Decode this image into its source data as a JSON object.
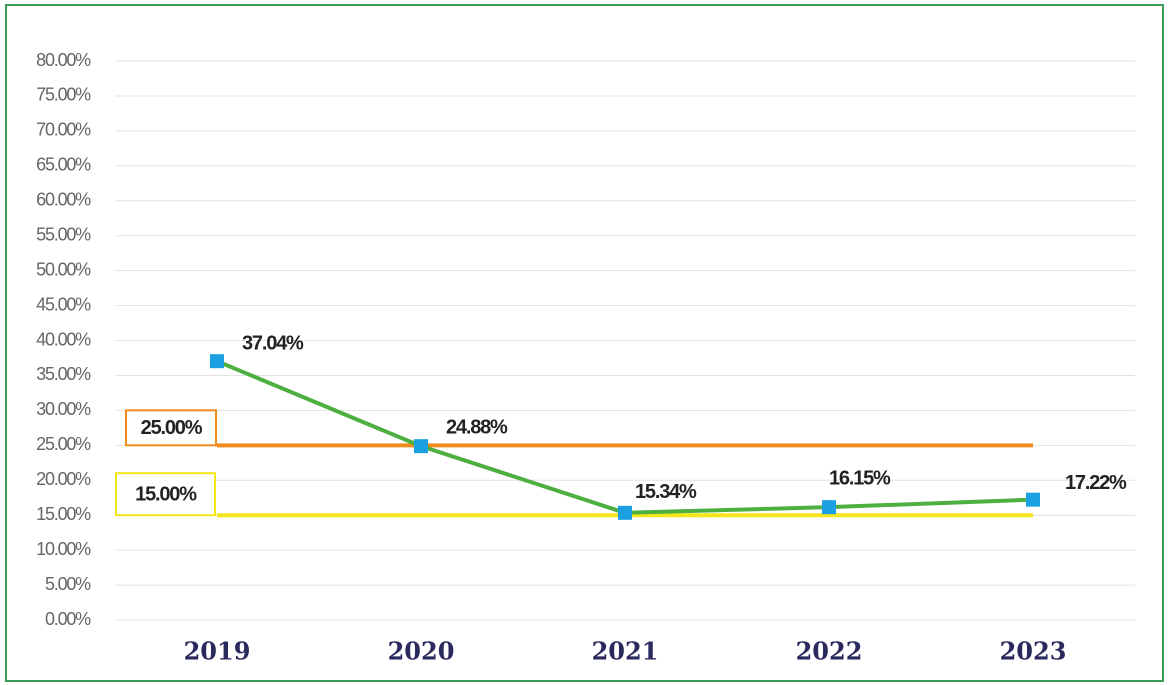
{
  "chart_data": {
    "type": "line",
    "categories": [
      "2019",
      "2020",
      "2021",
      "2022",
      "2023"
    ],
    "series": [
      {
        "name": null,
        "color": "#4caf3f",
        "marker_color": "#1ba1e2",
        "values": [
          37.04,
          24.88,
          15.34,
          16.15,
          17.22
        ],
        "value_labels": [
          "37.04%",
          "24.88%",
          "15.34%",
          "16.15%",
          "17.22%"
        ]
      }
    ],
    "reference_lines": [
      {
        "value": 25,
        "label": "25.00%",
        "color": "#f08c1e"
      },
      {
        "value": 15,
        "label": "15.00%",
        "color": "#f5e61a"
      }
    ],
    "ylim": [
      0,
      80
    ],
    "yticks": [
      {
        "value": 0,
        "label": "0.00%"
      },
      {
        "value": 5,
        "label": "5.00%"
      },
      {
        "value": 10,
        "label": "10.00%"
      },
      {
        "value": 15,
        "label": "15.00%"
      },
      {
        "value": 20,
        "label": "20.00%"
      },
      {
        "value": 25,
        "label": "25.00%"
      },
      {
        "value": 30,
        "label": "30.00%"
      },
      {
        "value": 35,
        "label": "35.00%"
      },
      {
        "value": 40,
        "label": "40.00%"
      },
      {
        "value": 45,
        "label": "45.00%"
      },
      {
        "value": 50,
        "label": "50.00%"
      },
      {
        "value": 55,
        "label": "55.00%"
      },
      {
        "value": 60,
        "label": "60.00%"
      },
      {
        "value": 65,
        "label": "65.00%"
      },
      {
        "value": 70,
        "label": "70.00%"
      },
      {
        "value": 75,
        "label": "75.00%"
      },
      {
        "value": 80,
        "label": "80.00%"
      }
    ],
    "grid": true
  }
}
